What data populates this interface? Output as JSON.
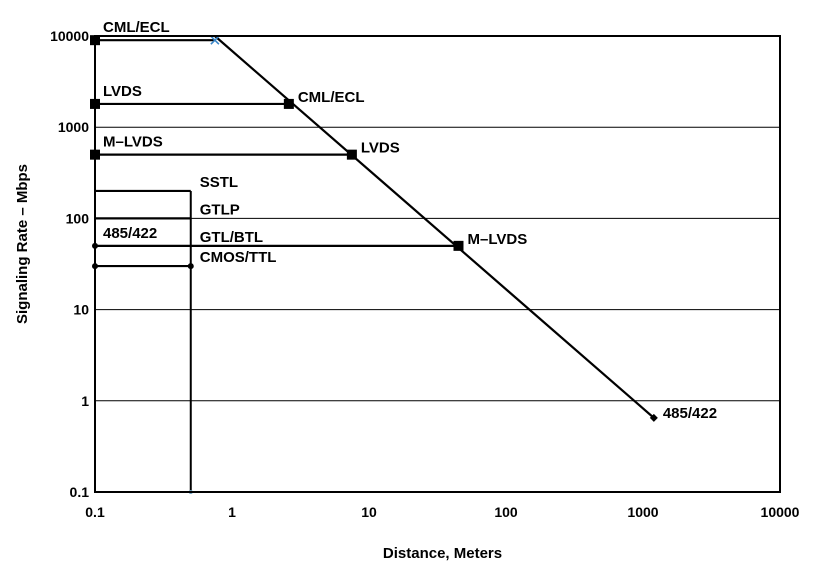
{
  "chart_data": {
    "type": "line",
    "xlabel": "Distance, Meters",
    "ylabel": "Signaling Rate – Mbps",
    "x_scale": "log",
    "y_scale": "log",
    "xlim": [
      0.1,
      10000
    ],
    "ylim": [
      0.1,
      10000
    ],
    "x_ticks": [
      {
        "value": 0.1,
        "label": "0.1"
      },
      {
        "value": 1,
        "label": "1"
      },
      {
        "value": 10,
        "label": "10"
      },
      {
        "value": 100,
        "label": "100"
      },
      {
        "value": 1000,
        "label": "1000"
      },
      {
        "value": 10000,
        "label": "10000"
      }
    ],
    "y_ticks": [
      {
        "value": 0.1,
        "label": "0.1"
      },
      {
        "value": 1,
        "label": "1"
      },
      {
        "value": 10,
        "label": "10"
      },
      {
        "value": 100,
        "label": "100"
      },
      {
        "value": 1000,
        "label": "1000"
      },
      {
        "value": 10000,
        "label": "10000"
      }
    ],
    "horizontal_gridlines": true,
    "vertical_gridlines": false,
    "boundary_line": {
      "points": [
        [
          0.75,
          10000
        ],
        [
          1200,
          0.65
        ]
      ],
      "color": "#000000"
    },
    "vertical_cutoff": {
      "x": 0.5,
      "y_from": 0.1,
      "y_to": 200
    },
    "series": [
      {
        "left_label": "CML/ECL",
        "end_label": "",
        "y": 9000,
        "x_start": 0.1,
        "x_end": 0.75,
        "marker": "square",
        "end_marker": "x"
      },
      {
        "left_label": "LVDS",
        "end_label": "CML/ECL",
        "y": 1800,
        "x_start": 0.1,
        "x_end": 2.6,
        "marker": "square",
        "end_marker": "square"
      },
      {
        "left_label": "M–LVDS",
        "end_label": "LVDS",
        "y": 500,
        "x_start": 0.1,
        "x_end": 7.5,
        "marker": "square",
        "end_marker": "square"
      },
      {
        "left_label": "",
        "end_label": "SSTL",
        "y": 200,
        "x_start": 0.1,
        "x_end": 0.5,
        "marker": "none",
        "end_marker": "none"
      },
      {
        "left_label": "",
        "end_label": "GTLP",
        "y": 100,
        "x_start": 0.1,
        "x_end": 0.5,
        "marker": "none",
        "end_marker": "none"
      },
      {
        "left_label": "485/422",
        "end_label": "M–LVDS",
        "y": 50,
        "x_start": 0.1,
        "x_end": 45,
        "marker": "dot",
        "end_marker": "square"
      },
      {
        "left_label": "",
        "end_label": "GTL/BTL",
        "y": 50,
        "x_start": 0.5,
        "x_end": 0.5,
        "marker": "none",
        "end_marker": "none",
        "label_only": true
      },
      {
        "left_label": "",
        "end_label": "CMOS/TTL",
        "y": 30,
        "x_start": 0.1,
        "x_end": 0.5,
        "marker": "dot",
        "end_marker": "dot"
      }
    ],
    "point_labels": [
      {
        "text": "485/422",
        "x": 1200,
        "y": 0.65,
        "marker": "diamond"
      }
    ]
  }
}
